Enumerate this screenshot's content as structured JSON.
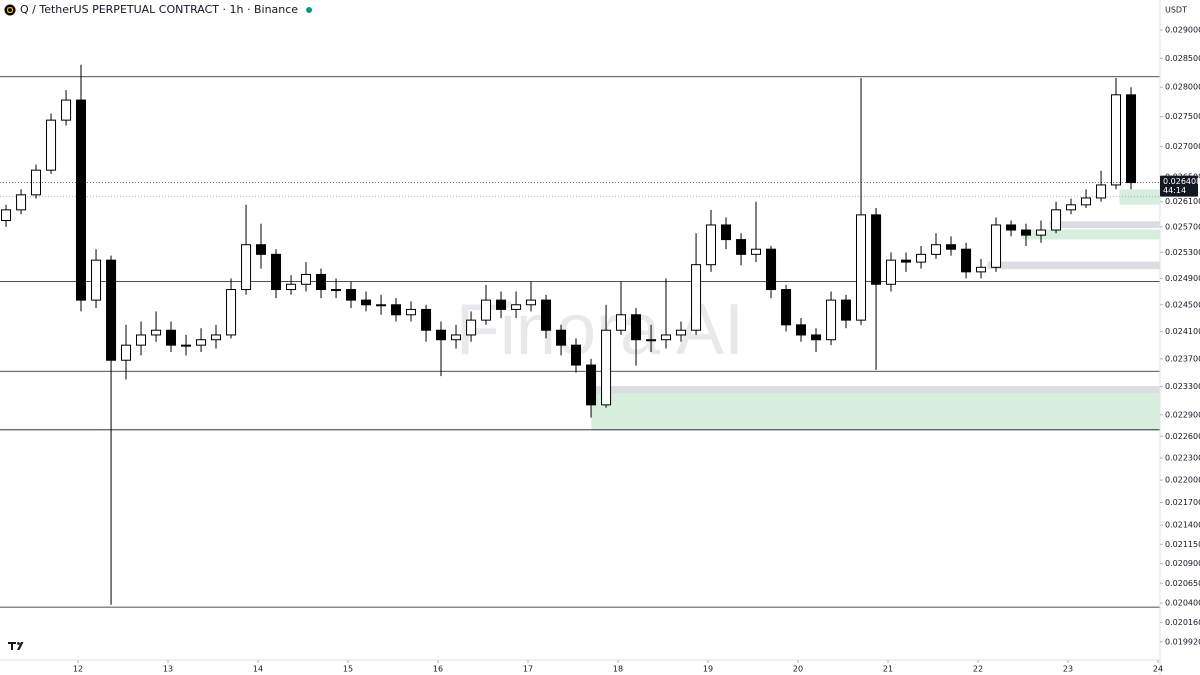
{
  "chart_data": {
    "type": "candlestick",
    "title": "Q / TetherUS PERPETUAL CONTRACT · 1h · Binance",
    "currency": "USDT",
    "watermark": "Finora AI",
    "countdown": "44:14",
    "log_scale": true,
    "up_color": "#ffffff",
    "down_color": "#000000",
    "outline_color": "#000000",
    "x": [
      11.2,
      11.367,
      11.533,
      11.7,
      11.867,
      12.033,
      12.2,
      12.367,
      12.533,
      12.7,
      12.867,
      13.033,
      13.2,
      13.367,
      13.533,
      13.7,
      13.867,
      14.033,
      14.2,
      14.367,
      14.533,
      14.7,
      14.867,
      15.033,
      15.2,
      15.367,
      15.533,
      15.7,
      15.867,
      16.033,
      16.2,
      16.367,
      16.533,
      16.7,
      16.867,
      17.033,
      17.2,
      17.367,
      17.533,
      17.7,
      17.867,
      18.033,
      18.2,
      18.367,
      18.533,
      18.7,
      18.867,
      19.033,
      19.2,
      19.367,
      19.533,
      19.7,
      19.867,
      20.033,
      20.2,
      20.367,
      20.533,
      20.7,
      20.867,
      21.033,
      21.2,
      21.367,
      21.533,
      21.7,
      21.867,
      22.033,
      22.2,
      22.367,
      22.533,
      22.7,
      22.867,
      23.033,
      23.2,
      23.367,
      23.533,
      23.7
    ],
    "open": [
      0.0258,
      0.02597,
      0.02621,
      0.02661,
      0.02744,
      0.02778,
      0.02457,
      0.02518,
      0.02368,
      0.0239,
      0.02405,
      0.02412,
      0.0239,
      0.0239,
      0.02398,
      0.02405,
      0.02473,
      0.02542,
      0.02527,
      0.02473,
      0.02481,
      0.02496,
      0.02473,
      0.02473,
      0.02457,
      0.0245,
      0.0245,
      0.02435,
      0.02443,
      0.02412,
      0.02398,
      0.02405,
      0.02427,
      0.02457,
      0.02443,
      0.0245,
      0.02457,
      0.02412,
      0.0239,
      0.02361,
      0.02304,
      0.02412,
      0.02435,
      0.02398,
      0.02398,
      0.02405,
      0.02412,
      0.02511,
      0.02573,
      0.0255,
      0.02527,
      0.02535,
      0.02473,
      0.0242,
      0.02405,
      0.02398,
      0.02457,
      0.02427,
      0.02589,
      0.02481,
      0.02518,
      0.02515,
      0.02527,
      0.02542,
      0.02535,
      0.025,
      0.02507,
      0.02573,
      0.02565,
      0.02557,
      0.02565,
      0.02597,
      0.02605,
      0.02616,
      0.02637,
      0.02787
    ],
    "high": [
      0.02605,
      0.0263,
      0.0267,
      0.02755,
      0.02795,
      0.02839,
      0.02535,
      0.02525,
      0.0242,
      0.02425,
      0.0244,
      0.02425,
      0.02405,
      0.02415,
      0.0242,
      0.0249,
      0.02605,
      0.02575,
      0.02535,
      0.02495,
      0.02515,
      0.02505,
      0.0249,
      0.02485,
      0.0247,
      0.02465,
      0.0246,
      0.02455,
      0.0245,
      0.02425,
      0.0242,
      0.0244,
      0.0248,
      0.0247,
      0.0247,
      0.02485,
      0.02465,
      0.0242,
      0.024,
      0.0237,
      0.0245,
      0.02485,
      0.02445,
      0.0242,
      0.0249,
      0.02425,
      0.0256,
      0.02597,
      0.02585,
      0.0256,
      0.0261,
      0.0254,
      0.0248,
      0.0243,
      0.02415,
      0.0247,
      0.02465,
      0.02816,
      0.026,
      0.0253,
      0.0253,
      0.0254,
      0.0256,
      0.02555,
      0.02545,
      0.0252,
      0.02585,
      0.0258,
      0.02575,
      0.0258,
      0.0261,
      0.02615,
      0.0263,
      0.0266,
      0.02816,
      0.028
    ],
    "low": [
      0.0257,
      0.0259,
      0.02615,
      0.02655,
      0.02735,
      0.0244,
      0.02445,
      0.02038,
      0.0234,
      0.02375,
      0.02395,
      0.0238,
      0.02375,
      0.0238,
      0.02385,
      0.024,
      0.02465,
      0.02505,
      0.0246,
      0.02465,
      0.0247,
      0.0246,
      0.0246,
      0.02445,
      0.0244,
      0.02435,
      0.02425,
      0.02425,
      0.02395,
      0.02345,
      0.02385,
      0.02395,
      0.0242,
      0.0243,
      0.0243,
      0.0244,
      0.024,
      0.02375,
      0.0235,
      0.02286,
      0.023,
      0.02405,
      0.0236,
      0.0238,
      0.02385,
      0.02395,
      0.02405,
      0.025,
      0.02535,
      0.0251,
      0.02515,
      0.0246,
      0.0241,
      0.02395,
      0.0238,
      0.0239,
      0.02415,
      0.0242,
      0.02354,
      0.0247,
      0.025,
      0.02505,
      0.0252,
      0.02525,
      0.0249,
      0.0249,
      0.025,
      0.02555,
      0.0254,
      0.02545,
      0.0256,
      0.0259,
      0.026,
      0.0261,
      0.0263,
      0.0263
    ],
    "close": [
      0.02597,
      0.02621,
      0.02661,
      0.02744,
      0.02778,
      0.02457,
      0.02518,
      0.02368,
      0.0239,
      0.02405,
      0.02412,
      0.0239,
      0.0239,
      0.02398,
      0.02405,
      0.02473,
      0.02542,
      0.02527,
      0.02473,
      0.02481,
      0.02496,
      0.02473,
      0.02473,
      0.02457,
      0.0245,
      0.0245,
      0.02435,
      0.02443,
      0.02412,
      0.02398,
      0.02405,
      0.02427,
      0.02457,
      0.02443,
      0.0245,
      0.02457,
      0.02412,
      0.0239,
      0.02361,
      0.02304,
      0.02412,
      0.02435,
      0.02398,
      0.02398,
      0.02405,
      0.02412,
      0.02511,
      0.02573,
      0.0255,
      0.02527,
      0.02535,
      0.02473,
      0.0242,
      0.02405,
      0.02398,
      0.02457,
      0.02427,
      0.02589,
      0.02481,
      0.02518,
      0.02515,
      0.02527,
      0.02542,
      0.02535,
      0.025,
      0.02507,
      0.02573,
      0.02565,
      0.02557,
      0.02565,
      0.02597,
      0.02605,
      0.02616,
      0.02637,
      0.02787,
      0.026408
    ],
    "levels": [
      0.02818,
      0.02485,
      0.02352,
      0.02269,
      0.02035
    ],
    "dotted_levels": [
      0.02618
    ],
    "zones": [
      {
        "start": 17.711,
        "top": 0.0233,
        "bottom": 0.02321,
        "color": "#dcdce2"
      },
      {
        "start": 17.711,
        "top": 0.0232,
        "bottom": 0.02269,
        "color": "#d6eedb"
      },
      {
        "start": 23.578,
        "top": 0.02629,
        "bottom": 0.02606,
        "color": "#d6eedb"
      },
      {
        "start": 22.8,
        "top": 0.02578,
        "bottom": 0.02569,
        "color": "#dcdce2"
      },
      {
        "start": 22.489,
        "top": 0.02565,
        "bottom": 0.02551,
        "color": "#d6eedb"
      },
      {
        "start": 22.111,
        "top": 0.02515,
        "bottom": 0.02505,
        "color": "#dcdce2"
      }
    ],
    "xlim": [
      11.133,
      24.022
    ],
    "ylim": [
      0.0197,
      0.02954
    ],
    "xticks": [
      12,
      13,
      14,
      15,
      16,
      17,
      18,
      19,
      20,
      21,
      22,
      23,
      24
    ],
    "yticks": [
      {
        "value": 0.029,
        "label": "0.029000"
      },
      {
        "value": 0.0285,
        "label": "0.028500"
      },
      {
        "value": 0.028,
        "label": "0.028000"
      },
      {
        "value": 0.0275,
        "label": "0.027500"
      },
      {
        "value": 0.027,
        "label": "0.027000"
      },
      {
        "value": 0.0265,
        "label": "0.026500"
      },
      {
        "value": 0.0261,
        "label": "0.026100"
      },
      {
        "value": 0.0257,
        "label": "0.025700"
      },
      {
        "value": 0.0253,
        "label": "0.025300"
      },
      {
        "value": 0.0249,
        "label": "0.024900"
      },
      {
        "value": 0.0245,
        "label": "0.024500"
      },
      {
        "value": 0.0241,
        "label": "0.024100"
      },
      {
        "value": 0.0237,
        "label": "0.023700"
      },
      {
        "value": 0.0233,
        "label": "0.023300"
      },
      {
        "value": 0.0229,
        "label": "0.022900"
      },
      {
        "value": 0.0226,
        "label": "0.022600"
      },
      {
        "value": 0.0223,
        "label": "0.022300"
      },
      {
        "value": 0.022,
        "label": "0.022000"
      },
      {
        "value": 0.0217,
        "label": "0.021700"
      },
      {
        "value": 0.0214,
        "label": "0.021400"
      },
      {
        "value": 0.02115,
        "label": "0.021150"
      },
      {
        "value": 0.0209,
        "label": "0.020900"
      },
      {
        "value": 0.02065,
        "label": "0.020650"
      },
      {
        "value": 0.0204,
        "label": "0.020400"
      },
      {
        "value": 0.02016,
        "label": "0.020160"
      },
      {
        "value": 0.01992,
        "label": "0.019920"
      }
    ]
  }
}
